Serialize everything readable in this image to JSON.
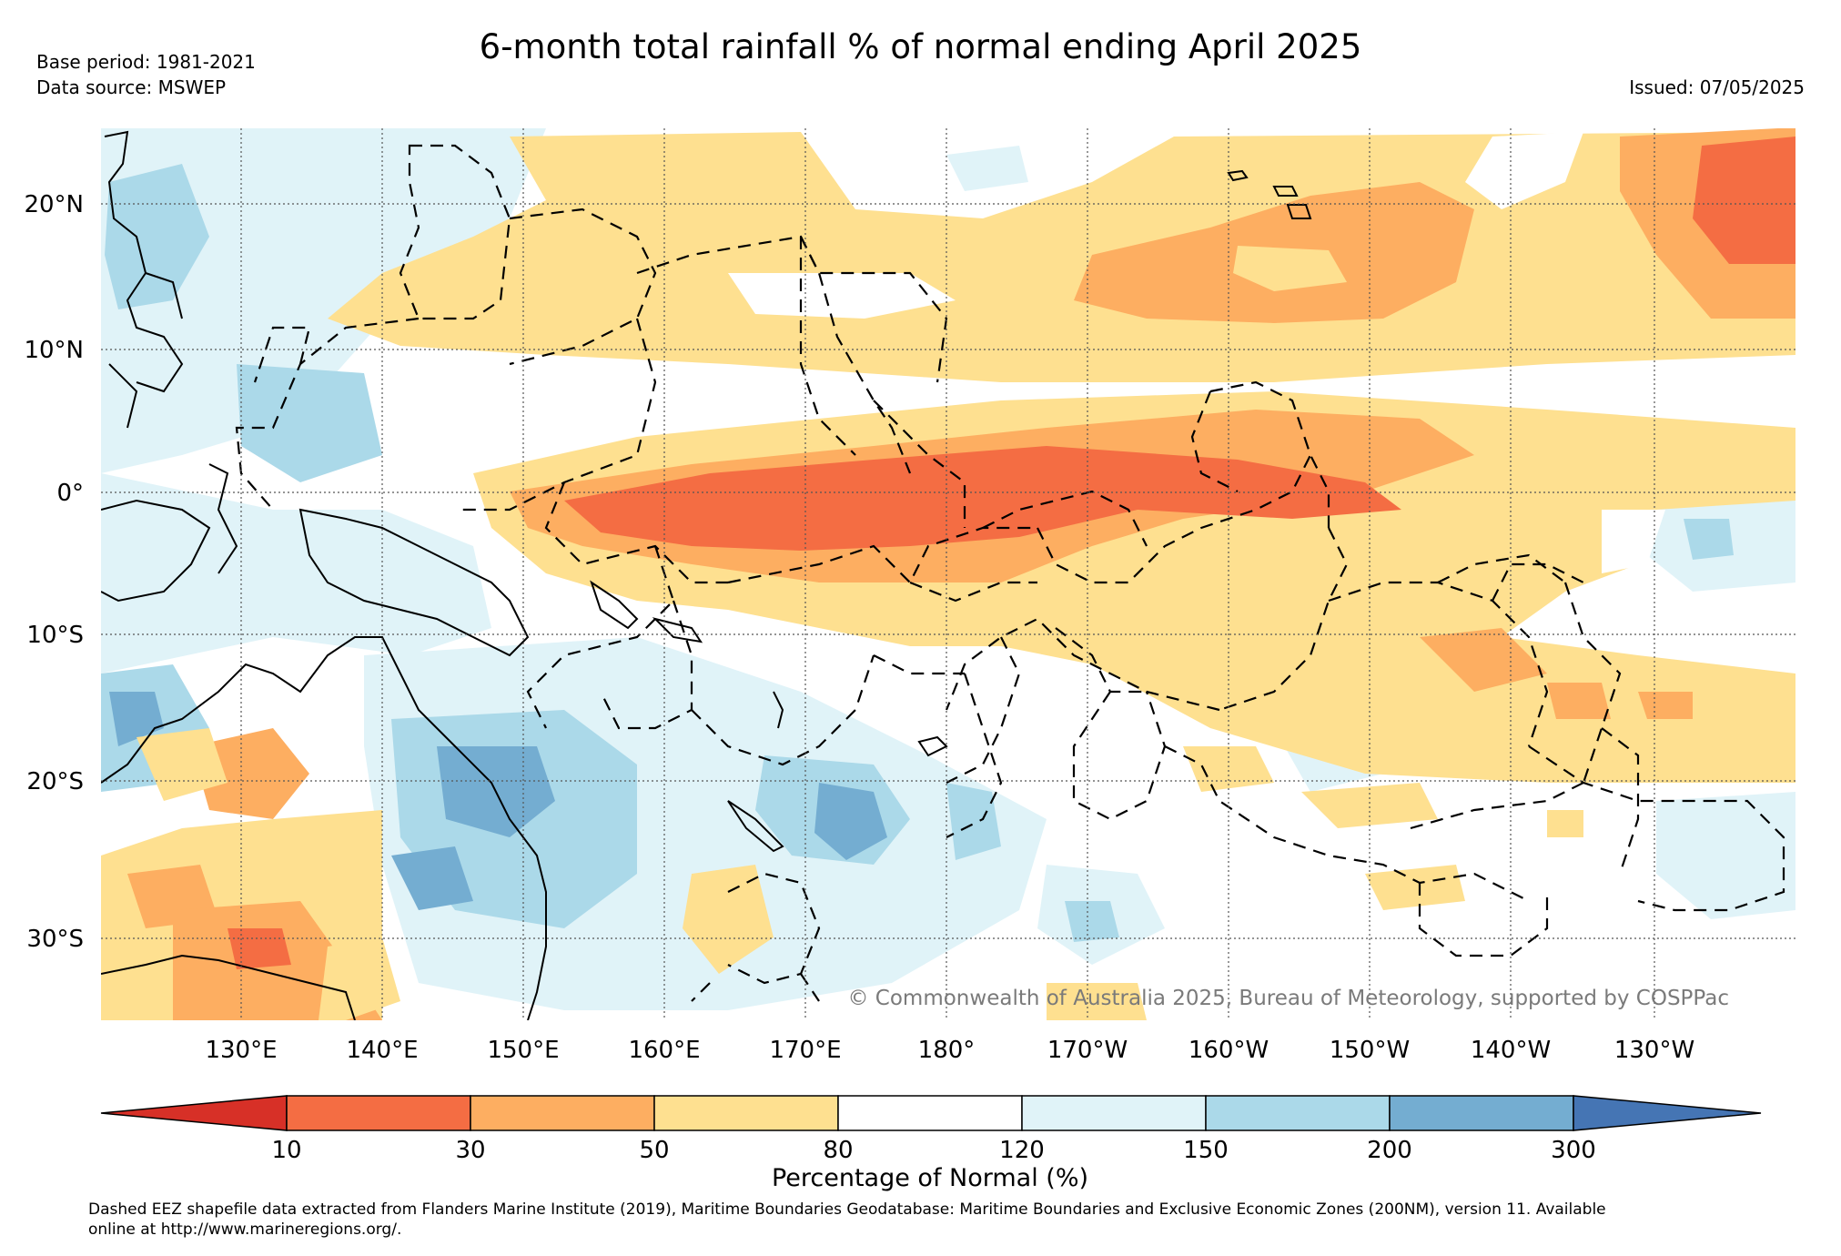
{
  "header": {
    "title": "6-month total rainfall % of normal ending April 2025",
    "base_period": "Base period: 1981-2021",
    "data_source": "Data source: MSWEP",
    "issued": "Issued: 07/05/2025"
  },
  "map": {
    "lat_labels": [
      "20°N",
      "10°N",
      "0°",
      "10°S",
      "20°S",
      "30°S"
    ],
    "lon_labels": [
      "130°E",
      "140°E",
      "150°E",
      "160°E",
      "170°E",
      "180°",
      "170°W",
      "160°W",
      "150°W",
      "140°W",
      "130°W"
    ],
    "copyright": "© Commonwealth of Australia 2025, Bureau of Meteorology, supported by COSPPac"
  },
  "legend": {
    "title": "Percentage of Normal (%)",
    "tick_labels": [
      "10",
      "30",
      "50",
      "80",
      "120",
      "150",
      "200",
      "300"
    ],
    "colors": [
      "#d73027",
      "#f46d43",
      "#fdae61",
      "#fee090",
      "#ffffff",
      "#e0f3f8",
      "#abd9e9",
      "#74add1",
      "#4575b4"
    ]
  },
  "footer": {
    "line1": "Dashed EEZ shapefile data extracted from Flanders Marine Institute (2019), Maritime Boundaries Geodatabase: Maritime Boundaries and Exclusive Economic Zones (200NM), version 11. Available",
    "line2": "online at http://www.marineregions.org/."
  }
}
